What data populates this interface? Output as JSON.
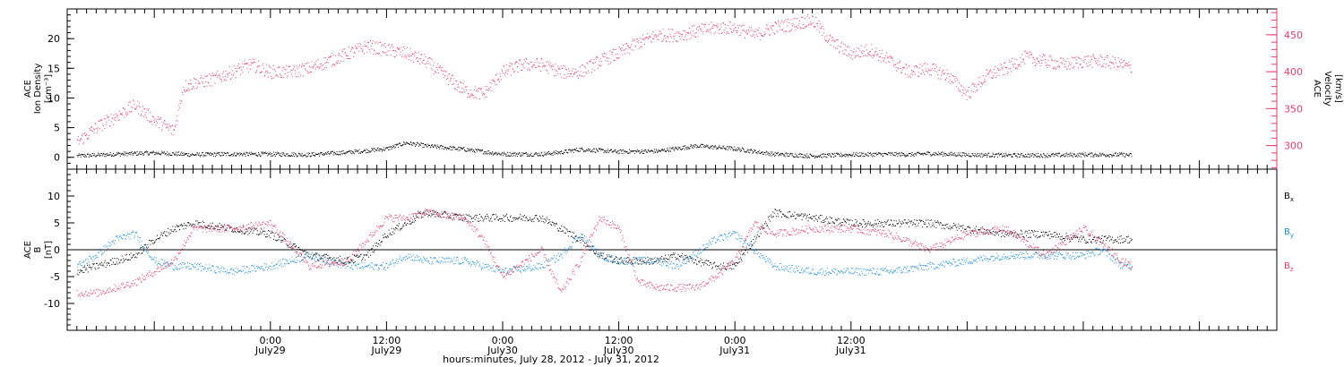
{
  "chart_data": [
    {
      "type": "scatter",
      "panel": "top",
      "ylabel_left": [
        "ACE",
        "Ion Density",
        "[cm⁻³]"
      ],
      "ylabel_right": [
        "ACE",
        "Velocity",
        "[km/s]"
      ],
      "ylim_left": [
        -2,
        25
      ],
      "ylim_right": [
        268,
        485
      ],
      "yticks_left": [
        "0",
        "5",
        "10",
        "15",
        "20"
      ],
      "yticks_right": [
        "300",
        "350",
        "400",
        "450"
      ],
      "colors": {
        "density": "#000000",
        "velocity": "#e83c6a"
      },
      "series": [
        {
          "axis": "left",
          "hours": [
            -20,
            -16,
            -12,
            -8,
            -4,
            0,
            4,
            8,
            12,
            14,
            16,
            20,
            24,
            28,
            30,
            32,
            36,
            40,
            44,
            48,
            52,
            56,
            60,
            64,
            66,
            68,
            72,
            76,
            80,
            84,
            88,
            89
          ],
          "values": [
            0.3,
            0.6,
            0.8,
            0.5,
            0.6,
            0.6,
            0.5,
            0.9,
            1.5,
            2.5,
            2.0,
            1.4,
            0.6,
            0.6,
            0.9,
            1.4,
            1.0,
            1.1,
            2.0,
            1.5,
            0.6,
            0.3,
            0.5,
            0.6,
            0.5,
            0.7,
            0.5,
            0.4,
            0.4,
            0.5,
            0.5,
            0.4
          ]
        },
        {
          "axis": "right",
          "hours": [
            -20,
            -18,
            -16,
            -14,
            -12,
            -10,
            -9,
            -8,
            -6,
            -4,
            -2,
            0,
            2,
            4,
            6,
            8,
            10,
            12,
            14,
            16,
            18,
            20,
            22,
            24,
            26,
            28,
            30,
            32,
            34,
            36,
            38,
            40,
            42,
            44,
            46,
            48,
            50,
            52,
            54,
            56,
            58,
            60,
            62,
            64,
            66,
            68,
            70,
            72,
            74,
            76,
            78,
            80,
            82,
            84,
            86,
            88,
            89
          ],
          "values": [
            305,
            325,
            340,
            355,
            335,
            320,
            380,
            385,
            390,
            400,
            410,
            400,
            400,
            405,
            415,
            425,
            435,
            430,
            425,
            415,
            395,
            375,
            370,
            400,
            410,
            410,
            400,
            400,
            415,
            425,
            440,
            450,
            450,
            455,
            460,
            460,
            450,
            460,
            465,
            470,
            440,
            425,
            430,
            415,
            400,
            405,
            395,
            370,
            395,
            405,
            420,
            415,
            410,
            415,
            415,
            410,
            405
          ]
        }
      ]
    },
    {
      "type": "scatter",
      "panel": "bottom",
      "ylabel_left": [
        "ACE",
        "B",
        "[nT]"
      ],
      "ylim_left": [
        -15,
        15
      ],
      "yticks_left": [
        "-10",
        "-5",
        "0",
        "5",
        "10"
      ],
      "colors": {
        "Bx": "#000000",
        "By": "#1a8fe0",
        "Bz": "#e83c6a"
      },
      "legend": [
        "B",
        "B",
        "B"
      ],
      "legend_subscripts": [
        "x",
        "y",
        "z"
      ],
      "series": [
        {
          "name": "Bx",
          "hours": [
            -20,
            -18,
            -16,
            -14,
            -12,
            -10,
            -8,
            -4,
            0,
            4,
            8,
            10,
            12,
            14,
            16,
            20,
            24,
            28,
            30,
            32,
            34,
            36,
            40,
            42,
            46,
            48,
            52,
            56,
            60,
            64,
            68,
            72,
            76,
            80,
            84,
            88,
            89
          ],
          "values": [
            -4,
            -3,
            -2,
            -1,
            2,
            4,
            5,
            4,
            3,
            -1,
            -2,
            -1,
            3,
            5,
            7,
            6,
            6,
            6,
            4,
            2,
            -1,
            -2,
            -2,
            -1,
            -3,
            -3,
            7,
            6,
            5,
            5,
            5,
            4,
            3,
            3,
            2,
            2,
            2
          ]
        },
        {
          "name": "By",
          "hours": [
            -20,
            -18,
            -16,
            -14,
            -12,
            -10,
            -8,
            -4,
            0,
            4,
            8,
            12,
            14,
            16,
            20,
            24,
            28,
            30,
            32,
            34,
            36,
            40,
            42,
            46,
            48,
            52,
            56,
            60,
            64,
            68,
            72,
            76,
            80,
            84,
            86,
            88,
            89
          ],
          "values": [
            -3,
            -1,
            2,
            3,
            -2,
            -3,
            -3,
            -4,
            -3,
            -1,
            -3,
            -3,
            -1,
            -2,
            -2,
            -4,
            -3,
            -1,
            3,
            -1,
            -2,
            -2,
            -3,
            2,
            3,
            -3,
            -4,
            -4,
            -4,
            -3,
            -2,
            -1,
            -1,
            -1,
            0,
            -3,
            -3
          ]
        },
        {
          "name": "Bz",
          "hours": [
            -20,
            -18,
            -16,
            -14,
            -12,
            -10,
            -8,
            -4,
            0,
            4,
            8,
            12,
            14,
            16,
            20,
            22,
            24,
            28,
            30,
            32,
            34,
            36,
            38,
            40,
            42,
            44,
            46,
            48,
            50,
            52,
            56,
            60,
            64,
            68,
            72,
            76,
            80,
            84,
            88,
            89
          ],
          "values": [
            -8,
            -8,
            -7,
            -6,
            -4,
            -2,
            4,
            4,
            5,
            -3,
            -2,
            6,
            6,
            7,
            6,
            2,
            -5,
            0,
            -8,
            -2,
            6,
            4,
            -6,
            -7,
            -7,
            -7,
            -5,
            -2,
            5,
            3,
            4,
            4,
            3,
            0,
            3,
            4,
            -1,
            4,
            -2,
            -3
          ]
        }
      ]
    }
  ],
  "time_axis": {
    "tick_hours": [
      0,
      12,
      24,
      36,
      48,
      60
    ],
    "tick_labels": [
      "0:00",
      "12:00",
      "0:00",
      "12:00",
      "0:00",
      "12:00"
    ],
    "date_labels": [
      "July29",
      "July29",
      "July30",
      "July30",
      "July31",
      "July31"
    ],
    "xlabel": "hours:minutes, July 28, 2012 - July 31, 2012"
  }
}
